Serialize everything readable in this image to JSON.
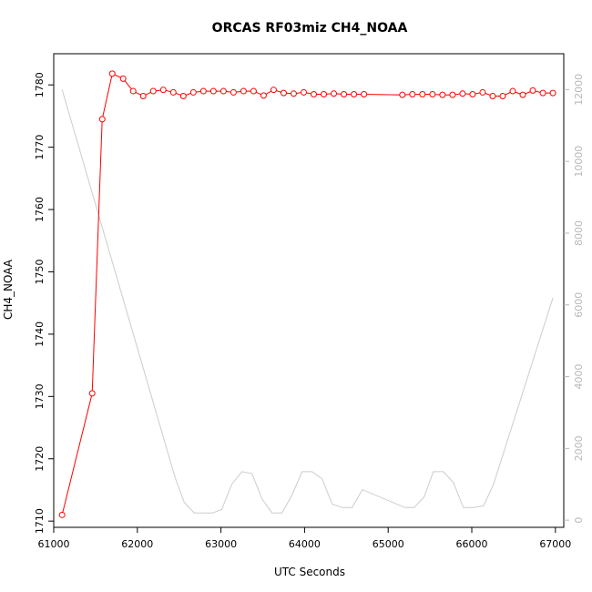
{
  "chart_data": {
    "type": "line",
    "title": "ORCAS RF03miz CH4_NOAA",
    "xlabel": "UTC Seconds",
    "ylabel": "CH4_NOAA",
    "y2label": "",
    "xlim": [
      61000,
      67100
    ],
    "ylim": [
      1709,
      1785
    ],
    "y2lim": [
      -200,
      13000
    ],
    "x_ticks": [
      61000,
      62000,
      63000,
      64000,
      65000,
      66000,
      67000
    ],
    "y_ticks": [
      1710,
      1720,
      1730,
      1740,
      1750,
      1760,
      1770,
      1780
    ],
    "y2_ticks": [
      0,
      2000,
      4000,
      6000,
      8000,
      10000,
      12000
    ],
    "grid": false,
    "legend": "none",
    "series": [
      {
        "axis": "left",
        "style": "line+circle",
        "color": "#ff0000",
        "x": [
          61100,
          61460,
          61580,
          61700,
          61830,
          61950,
          62070,
          62190,
          62310,
          62430,
          62550,
          62670,
          62790,
          62910,
          63030,
          63150,
          63270,
          63390,
          63510,
          63630,
          63750,
          63870,
          63990,
          64110,
          64230,
          64350,
          64470,
          64590,
          64710,
          65170,
          65290,
          65410,
          65530,
          65650,
          65770,
          65890,
          66010,
          66130,
          66250,
          66370,
          66490,
          66610,
          66730,
          66850,
          66970
        ],
        "y": [
          1711.0,
          1730.5,
          1774.5,
          1781.8,
          1781.0,
          1779.0,
          1778.2,
          1779.0,
          1779.2,
          1778.8,
          1778.2,
          1778.8,
          1779.0,
          1779.0,
          1779.0,
          1778.8,
          1779.0,
          1779.0,
          1778.3,
          1779.2,
          1778.7,
          1778.6,
          1778.8,
          1778.5,
          1778.5,
          1778.6,
          1778.5,
          1778.5,
          1778.5,
          1778.4,
          1778.5,
          1778.5,
          1778.5,
          1778.4,
          1778.4,
          1778.6,
          1778.5,
          1778.8,
          1778.2,
          1778.2,
          1779.0,
          1778.4,
          1779.1,
          1778.7,
          1778.7
        ]
      },
      {
        "axis": "right",
        "style": "line",
        "color": "#cccccc",
        "x": [
          61100,
          62450,
          62560,
          62680,
          62790,
          62900,
          63010,
          63130,
          63250,
          63370,
          63490,
          63610,
          63730,
          63850,
          63970,
          64090,
          64210,
          64330,
          64450,
          64570,
          64690,
          65200,
          65310,
          65430,
          65540,
          65660,
          65780,
          65900,
          66020,
          66140,
          66260,
          66970
        ],
        "y": [
          12000,
          1200,
          500,
          200,
          200,
          200,
          300,
          1000,
          1350,
          1300,
          600,
          200,
          200,
          700,
          1350,
          1350,
          1150,
          450,
          350,
          350,
          850,
          350,
          350,
          650,
          1350,
          1350,
          1050,
          350,
          350,
          400,
          1000,
          6200
        ]
      }
    ]
  }
}
